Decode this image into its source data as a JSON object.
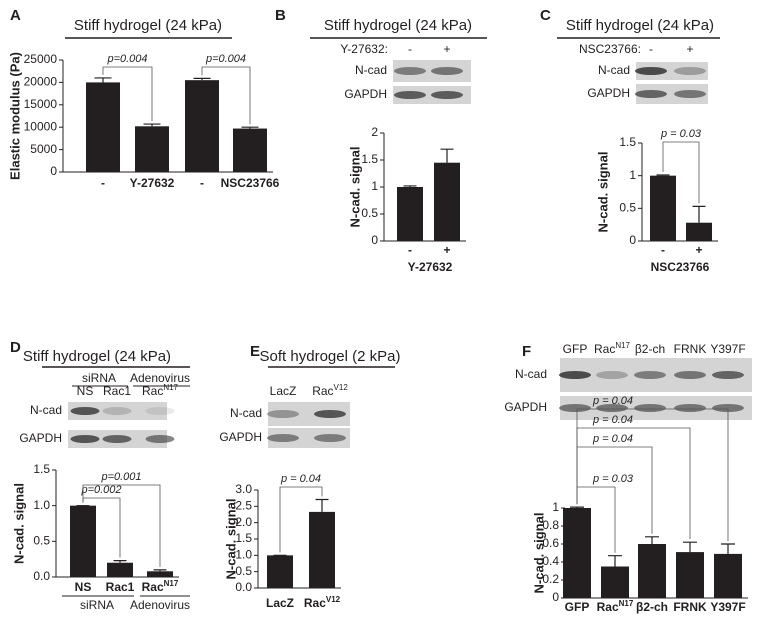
{
  "chart_data": [
    {
      "type": "bar",
      "panel": "A",
      "title": "Stiff hydrogel (24 kPa)",
      "y_label": "Elastic modulus (Pa)",
      "categories": [
        "-",
        "Y-27632",
        "-",
        "NSC23766"
      ],
      "values": [
        20000,
        10200,
        20500,
        9700
      ],
      "errors": [
        1000,
        500,
        400,
        300
      ],
      "color": "#231f20",
      "ylim": [
        0,
        25000
      ],
      "yticks": [
        0,
        5000,
        10000,
        15000,
        20000,
        25000
      ],
      "annotations": [
        "p=0.004",
        "p=0.004"
      ]
    },
    {
      "type": "bar",
      "panel": "B",
      "title": "Stiff hydrogel (24 kPa)",
      "blot": {
        "header": "Y-27632:",
        "lanes": [
          "-",
          "+"
        ],
        "rows": [
          "N-cad",
          "GAPDH"
        ]
      },
      "y_label": "N-cad. signal",
      "categories": [
        "-",
        "+"
      ],
      "x_label": "Y-27632",
      "values": [
        1,
        1.45
      ],
      "errors": [
        0.02,
        0.25
      ],
      "color": "#231f20",
      "ylim": [
        0,
        2
      ],
      "yticks": [
        0,
        0.5,
        1,
        1.5,
        2
      ]
    },
    {
      "type": "bar",
      "panel": "C",
      "title": "Stiff hydrogel (24 kPa)",
      "blot": {
        "header": "NSC23766:",
        "lanes": [
          "-",
          "+"
        ],
        "rows": [
          "N-cad",
          "GAPDH"
        ]
      },
      "y_label": "N-cad. signal",
      "categories": [
        "-",
        "+"
      ],
      "x_label": "NSC23766",
      "values": [
        1,
        0.28
      ],
      "errors": [
        0.01,
        0.25
      ],
      "color": "#231f20",
      "ylim": [
        0,
        1.5
      ],
      "yticks": [
        0,
        0.5,
        1,
        1.5
      ],
      "annotations": [
        "p = 0.03"
      ]
    },
    {
      "type": "bar",
      "panel": "D",
      "title": "Stiff hydrogel (24 kPa)",
      "blot": {
        "groups": [
          "siRNA",
          "Adenovirus"
        ],
        "lanes": [
          "NS",
          "Rac1",
          {
            "text": "Rac",
            "sup": "N17"
          }
        ],
        "rows": [
          "N-cad",
          "GAPDH"
        ]
      },
      "y_label": "N-cad. signal",
      "categories": [
        "NS",
        "Rac1",
        {
          "text": "Rac",
          "sup": "N17"
        }
      ],
      "x_groups": [
        "siRNA",
        "Adenovirus"
      ],
      "values": [
        1,
        0.2,
        0.08
      ],
      "errors": [
        0,
        0.03,
        0.02
      ],
      "color": "#231f20",
      "ylim": [
        0,
        1.5
      ],
      "yticks": [
        {
          "value": 0,
          "label": "0.0"
        },
        {
          "value": 0.5,
          "label": "0.5"
        },
        {
          "value": 1,
          "label": "1.0"
        },
        {
          "value": 1.5,
          "label": "1.5"
        }
      ],
      "annotations": [
        "p=0.002",
        "p=0.001"
      ]
    },
    {
      "type": "bar",
      "panel": "E",
      "title": "Soft hydrogel (2 kPa)",
      "blot": {
        "lanes": [
          "LacZ",
          {
            "text": "Rac",
            "sup": "V12"
          }
        ],
        "rows": [
          "N-cad",
          "GAPDH"
        ]
      },
      "y_label": "N-cad. signal",
      "categories": [
        "LacZ",
        {
          "text": "Rac",
          "sup": "V12"
        }
      ],
      "values": [
        1,
        2.33
      ],
      "errors": [
        0,
        0.38
      ],
      "color": "#231f20",
      "ylim": [
        0,
        3
      ],
      "yticks": [
        {
          "value": 0,
          "label": "0.0"
        },
        {
          "value": 0.5,
          "label": "0.5"
        },
        {
          "value": 1,
          "label": "1.0"
        },
        {
          "value": 1.5,
          "label": "1.5"
        },
        {
          "value": 2,
          "label": "2.0"
        },
        {
          "value": 2.5,
          "label": "2.5"
        },
        {
          "value": 3,
          "label": "3.0"
        }
      ],
      "annotations": [
        "p = 0.04"
      ]
    },
    {
      "type": "bar",
      "panel": "F",
      "blot": {
        "lanes": [
          "GFP",
          {
            "text": "Rac",
            "sup": "N17"
          },
          "β2-ch",
          "FRNK",
          "Y397F"
        ],
        "rows": [
          "N-cad",
          "GAPDH"
        ]
      },
      "y_label": "N-cad. signal",
      "categories": [
        "GFP",
        {
          "text": "Rac",
          "sup": "N17"
        },
        "β2-ch",
        "FRNK",
        "Y397F"
      ],
      "values": [
        1,
        0.35,
        0.6,
        0.51,
        0.49
      ],
      "errors": [
        0.01,
        0.12,
        0.08,
        0.11,
        0.11
      ],
      "color": "#231f20",
      "ylim": [
        0,
        1
      ],
      "yticks": [
        0,
        0.2,
        0.4,
        0.6,
        0.8,
        1
      ],
      "annotations": [
        "p = 0.04",
        "p = 0.04",
        "p = 0.04",
        "p = 0.03"
      ]
    }
  ]
}
